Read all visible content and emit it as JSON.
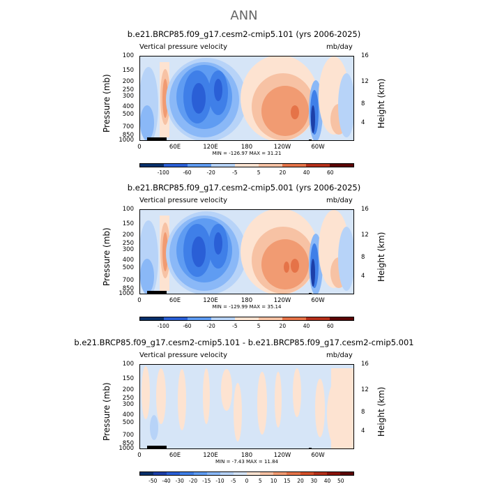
{
  "main_title": "ANN",
  "colormap": [
    "#08306b",
    "#1c3fa8",
    "#2a5fd6",
    "#3f7fe8",
    "#5f9cf2",
    "#8ab8f7",
    "#b7d3f8",
    "#d6e5f7",
    "#fde3d1",
    "#f7c2a4",
    "#f19b72",
    "#e57348",
    "#d4502a",
    "#b5301a",
    "#8a1309",
    "#5c0505"
  ],
  "chart_data": [
    {
      "type": "heatmap",
      "title": "b.e21.BRCP85.f09_g17.cesm2-cmip5.101 (yrs 2006-2025)",
      "left_label": "Vertical pressure velocity",
      "right_label": "mb/day",
      "ylabel": "Pressure (mb)",
      "ylabel_right": "Height (km)",
      "y_ticks": [
        "100",
        "150",
        "200",
        "250",
        "300",
        "400",
        "500",
        "700",
        "850",
        "1000"
      ],
      "y_ticks_right": [
        "16",
        "12",
        "8",
        "4"
      ],
      "x_ticks": [
        "0",
        "60E",
        "120E",
        "180",
        "120W",
        "60W"
      ],
      "min_max": "MIN = -126.97   MAX =   31.21",
      "colorbar_labels": [
        "-100",
        "-60",
        "-20",
        "-5",
        "5",
        "20",
        "40",
        "60"
      ]
    },
    {
      "type": "heatmap",
      "title": "b.e21.BRCP85.f09_g17.cesm2-cmip5.001 (yrs 2006-2025)",
      "left_label": "Vertical pressure velocity",
      "right_label": "mb/day",
      "ylabel": "Pressure (mb)",
      "ylabel_right": "Height (km)",
      "y_ticks": [
        "100",
        "150",
        "200",
        "250",
        "300",
        "400",
        "500",
        "700",
        "850",
        "1000"
      ],
      "y_ticks_right": [
        "16",
        "12",
        "8",
        "4"
      ],
      "x_ticks": [
        "0",
        "60E",
        "120E",
        "180",
        "120W",
        "60W"
      ],
      "min_max": "MIN = -129.99   MAX =   35.14",
      "colorbar_labels": [
        "-100",
        "-60",
        "-20",
        "-5",
        "5",
        "20",
        "40",
        "60"
      ]
    },
    {
      "type": "heatmap",
      "title": "b.e21.BRCP85.f09_g17.cesm2-cmip5.101 - b.e21.BRCP85.f09_g17.cesm2-cmip5.001",
      "left_label": "Vertical pressure velocity",
      "right_label": "mb/day",
      "ylabel": "Pressure (mb)",
      "ylabel_right": "Height (km)",
      "y_ticks": [
        "100",
        "150",
        "200",
        "250",
        "300",
        "400",
        "500",
        "700",
        "850",
        "1000"
      ],
      "y_ticks_right": [
        "16",
        "12",
        "8",
        "4"
      ],
      "x_ticks": [
        "0",
        "60E",
        "120E",
        "180",
        "120W",
        "60W"
      ],
      "min_max": "MIN =   -7.43   MAX =   11.84",
      "colorbar_labels": [
        "-50",
        "-40",
        "-30",
        "-20",
        "-15",
        "-10",
        "-5",
        "0",
        "5",
        "10",
        "15",
        "20",
        "30",
        "40",
        "50"
      ]
    }
  ]
}
